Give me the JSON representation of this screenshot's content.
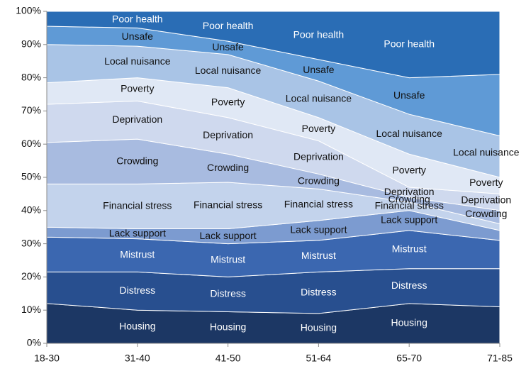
{
  "chart_data": {
    "type": "stacked-area",
    "categories": [
      "18-30",
      "31-40",
      "41-50",
      "51-64",
      "65-70",
      "71-85"
    ],
    "series": [
      {
        "name": "Housing",
        "color": "#1c3764",
        "values": [
          12,
          10,
          9.5,
          9,
          12,
          11
        ]
      },
      {
        "name": "Distress",
        "color": "#284f8f",
        "values": [
          9.5,
          11.5,
          10.5,
          12.5,
          10.5,
          11.5
        ]
      },
      {
        "name": "Mistrust",
        "color": "#3b67b0",
        "values": [
          10.5,
          10,
          10,
          9.5,
          11.5,
          8.5
        ]
      },
      {
        "name": "Lack support",
        "color": "#7c9bd0",
        "values": [
          3,
          3,
          4.5,
          6,
          6,
          3
        ]
      },
      {
        "name": "Financial stress",
        "color": "#c3d3ec",
        "values": [
          13,
          13.5,
          14,
          9.5,
          2.5,
          2
        ]
      },
      {
        "name": "Crowding",
        "color": "#a8bbe0",
        "values": [
          12.5,
          13.5,
          8.5,
          4.5,
          1.5,
          4
        ]
      },
      {
        "name": "Deprivation",
        "color": "#cfd9ee",
        "values": [
          11.5,
          11.5,
          11,
          10,
          3,
          5
        ]
      },
      {
        "name": "Poverty",
        "color": "#e0e8f5",
        "values": [
          6.5,
          7,
          9,
          7,
          10,
          5
        ]
      },
      {
        "name": "Local nuisance",
        "color": "#a9c4e6",
        "values": [
          11.5,
          9.5,
          10,
          11,
          12,
          12.5
        ]
      },
      {
        "name": "Unsafe",
        "color": "#5f9ad6",
        "values": [
          5.5,
          5.5,
          4,
          6.5,
          11,
          18.5
        ]
      },
      {
        "name": "Poor health",
        "color": "#2a6db5",
        "values": [
          4.5,
          5,
          9,
          14.5,
          20,
          19
        ]
      }
    ],
    "ylim": [
      0,
      100
    ],
    "yticks": [
      {
        "value": 0,
        "label": "0%"
      },
      {
        "value": 10,
        "label": "10%"
      },
      {
        "value": 20,
        "label": "20%"
      },
      {
        "value": 30,
        "label": "30%"
      },
      {
        "value": 40,
        "label": "40%"
      },
      {
        "value": 50,
        "label": "50%"
      },
      {
        "value": 60,
        "label": "60%"
      },
      {
        "value": 70,
        "label": "70%"
      },
      {
        "value": 80,
        "label": "80%"
      },
      {
        "value": 90,
        "label": "90%"
      },
      {
        "value": 100,
        "label": "100%"
      }
    ]
  }
}
